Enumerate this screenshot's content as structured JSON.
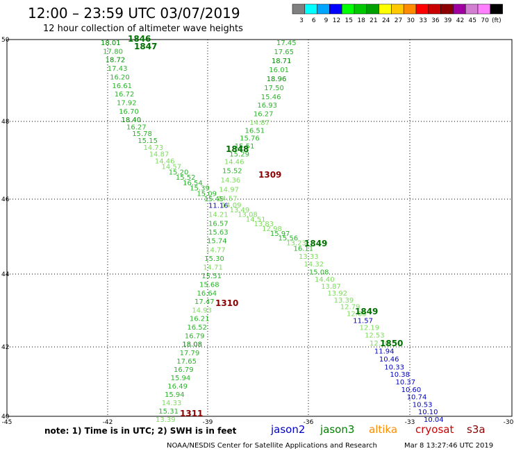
{
  "header": {
    "title": "12:00 – 23:59 UTC 03/07/2019",
    "subtitle": "12 hour collection of altimeter wave heights"
  },
  "colorbar": {
    "colors": [
      "#808080",
      "#00ffff",
      "#00a5ff",
      "#0000ff",
      "#00ff00",
      "#00c800",
      "#00a000",
      "#ffff00",
      "#ffc800",
      "#ff8c00",
      "#ff0000",
      "#c80000",
      "#8b0000",
      "#a000a0",
      "#d27fd2",
      "#ff80ff",
      "#000000"
    ],
    "labels": [
      "3",
      "6",
      "9",
      "12",
      "15",
      "18",
      "21",
      "24",
      "27",
      "30",
      "33",
      "36",
      "39",
      "42",
      "45",
      "70",
      "(ft)"
    ]
  },
  "axes": {
    "lon_ticks": [
      "-45",
      "-42",
      "-39",
      "-36",
      "-33",
      "-30"
    ],
    "lat_ticks": [
      "50",
      "48",
      "46",
      "44",
      "42",
      "40"
    ]
  },
  "tracks": {
    "a": [
      "18.01",
      "17.80",
      "18.72",
      "17.43",
      "16.20",
      "16.61",
      "16.72",
      "17.92",
      "16.70",
      "18.40",
      "16.27",
      "15.78",
      "15.15",
      "14.73",
      "14.87",
      "14.46",
      "14.57",
      "15.20",
      "15.52",
      "16.54",
      "15.39",
      "15.09",
      "15.45",
      "11.16",
      "14.21",
      "16.57",
      "15.63",
      "15.74",
      "14.77",
      "15.30",
      "14.71",
      "15.51",
      "15.68",
      "16.64",
      "17.47",
      "14.93",
      "16.21",
      "16.52",
      "16.79",
      "18.08",
      "17.79",
      "17.65",
      "16.79",
      "15.94",
      "16.49",
      "15.94",
      "14.33",
      "15.31",
      "13.39"
    ],
    "b": [
      "17.45",
      "17.65",
      "18.71",
      "16.01",
      "18.96",
      "17.50",
      "15.46",
      "16.93",
      "16.27",
      "14.87",
      "16.51",
      "15.76",
      "15.51",
      "15.29",
      "14.46",
      "15.52",
      "14.36",
      "14.97",
      "14.57",
      "14.09",
      "13.49",
      "13.08",
      "14.51",
      "13.83",
      "12.98",
      "15.97",
      "15.56",
      "13.23",
      "16.11",
      "13.33",
      "14.32",
      "15.08",
      "14.40",
      "13.87",
      "13.92",
      "13.39",
      "12.79",
      "12.85",
      "11.57",
      "12.19",
      "12.53",
      "12.70",
      "11.94",
      "10.46",
      "10.33",
      "10.38",
      "10.37",
      "10.60",
      "10.74",
      "10.53",
      "10.10",
      "10.04"
    ]
  },
  "pass_labels": {
    "p1846": "1846",
    "p1847": "1847",
    "p1848": "1848",
    "p1309": "1309",
    "p1849a": "1849",
    "p1849b": "1849",
    "p1850": "1850",
    "p1310": "1310",
    "p1311": "1311"
  },
  "footer": {
    "note": "note:  1) Time is in UTC;  2) SWH is in feet",
    "satellites": [
      {
        "name": "jason2",
        "color": "#0000cc"
      },
      {
        "name": "jason3",
        "color": "#008000"
      },
      {
        "name": "altika",
        "color": "#ff8c00"
      },
      {
        "name": "cryosat",
        "color": "#cc0000"
      },
      {
        "name": "s3a",
        "color": "#8b0000"
      }
    ],
    "credit": "NOAA/NESDIS Center for Satellite Applications and Research",
    "timestamp": "Mar  8 13:27:46 UTC 2019"
  }
}
